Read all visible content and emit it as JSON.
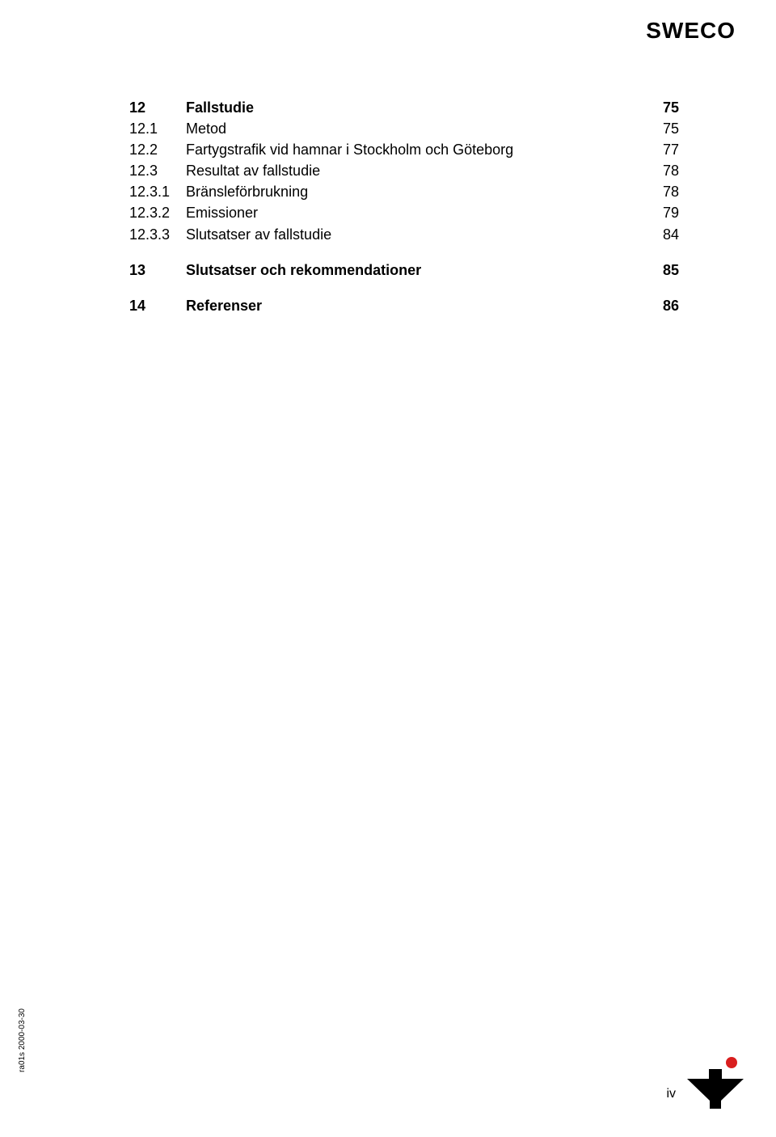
{
  "header": {
    "logo_text": "SWECO"
  },
  "toc": {
    "rows": [
      {
        "num": "12",
        "title": "Fallstudie",
        "page": "75",
        "bold": true
      },
      {
        "num": "12.1",
        "title": "Metod",
        "page": "75",
        "bold": false
      },
      {
        "num": "12.2",
        "title": "Fartygstrafik vid hamnar i Stockholm och Göteborg",
        "page": "77",
        "bold": false
      },
      {
        "num": "12.3",
        "title": "Resultat av fallstudie",
        "page": "78",
        "bold": false
      },
      {
        "num": "12.3.1",
        "title": "Bränsleförbrukning",
        "page": "78",
        "bold": false
      },
      {
        "num": "12.3.2",
        "title": "Emissioner",
        "page": "79",
        "bold": false
      },
      {
        "num": "12.3.3",
        "title": "Slutsatser av fallstudie",
        "page": "84",
        "bold": false
      },
      {
        "num": "13",
        "title": "Slutsatser och rekommendationer",
        "page": "85",
        "bold": true,
        "gap_before": true
      },
      {
        "num": "14",
        "title": "Referenser",
        "page": "86",
        "bold": true,
        "gap_before": true
      }
    ]
  },
  "footer": {
    "side_label": "ra01s 2000-03-30",
    "page_number": "iv",
    "logo_colors": {
      "black": "#000000",
      "red": "#d91e1e"
    }
  }
}
